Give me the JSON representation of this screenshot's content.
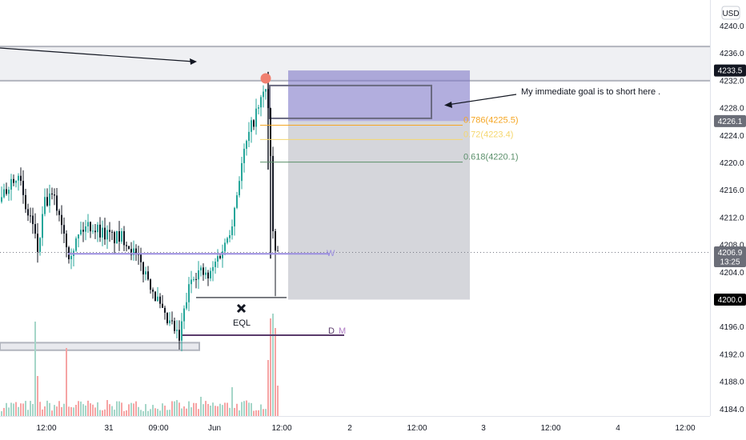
{
  "chart_data": {
    "type": "candlestick",
    "currency": "USD",
    "y_axis": {
      "ticks": [
        "4240.0",
        "4236.0",
        "4232.0",
        "4228.0",
        "4224.0",
        "4220.0",
        "4216.0",
        "4212.0",
        "4208.0",
        "4204.0",
        "4200.0",
        "4196.0",
        "4192.0",
        "4188.0",
        "4184.0"
      ],
      "tick_values": [
        4240,
        4236,
        4232,
        4228,
        4224,
        4220,
        4216,
        4212,
        4208,
        4204,
        4200,
        4196,
        4192,
        4188,
        4184
      ],
      "range": [
        4183,
        4242
      ]
    },
    "x_axis": {
      "ticks": [
        "12:00",
        "31",
        "09:00",
        "Jun",
        "12:00",
        "2",
        "12:00",
        "3",
        "12:00",
        "4",
        "12:00"
      ]
    },
    "price_badges": [
      {
        "label": "4233.5",
        "value": 4233.5,
        "style": "dark"
      },
      {
        "label": "4226.1",
        "value": 4226.1,
        "style": "gray"
      },
      {
        "label": "4206.9",
        "sublabel": "13:25",
        "value": 4206.9,
        "style": "gray"
      },
      {
        "label": "4200.0",
        "value": 4200.0,
        "style": "black"
      }
    ],
    "current_price": 4206.9,
    "fib_levels": [
      {
        "label": "0.786(4225.5)",
        "value": 4225.5,
        "color": "#f5a623"
      },
      {
        "label": "0.72(4223.4)",
        "value": 4223.4,
        "color": "#f5d76e"
      },
      {
        "label": "0.618(4220.1)",
        "value": 4220.1,
        "color": "#5a8f6a"
      }
    ],
    "zones": [
      {
        "name": "upper-supply-zone",
        "y_top": 4237,
        "y_bottom": 4232
      },
      {
        "name": "lower-demand-zone",
        "y_top": 4193.7,
        "y_bottom": 4192.6
      },
      {
        "name": "short-entry-zone",
        "y_top": 4233.5,
        "y_bottom": 4226.1
      },
      {
        "name": "short-target-zone",
        "y_top": 4226.1,
        "y_bottom": 4200.0
      }
    ],
    "level_lines": [
      {
        "label": "W",
        "value": 4206.7,
        "color": "#9b8ee0"
      },
      {
        "label": "D",
        "value": 4194.8,
        "color": "#5a3b6b"
      },
      {
        "label": "M",
        "value": 4194.8,
        "color": "#b07cc6"
      }
    ],
    "annotations": {
      "goal_text": "My immediate goal is to short here .",
      "eql_text": "EQL",
      "eql_value": 4200.3
    },
    "candles_note": "OHLC series approximated from the screenshot",
    "colors": {
      "up": "#26a69a",
      "down": "#131722",
      "volume_up": "#a5d6c8",
      "volume_down": "#f6a4a4"
    }
  }
}
